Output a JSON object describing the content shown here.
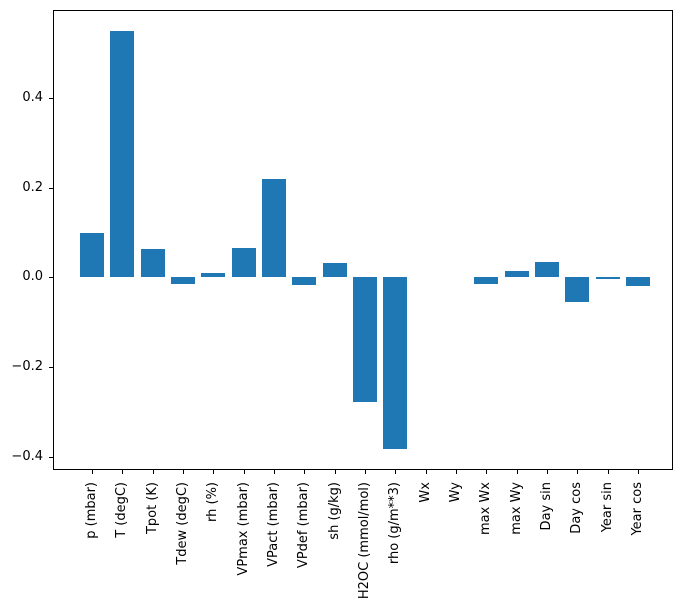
{
  "chart_data": {
    "type": "bar",
    "title": "",
    "xlabel": "",
    "ylabel": "",
    "categories": [
      "p (mbar)",
      "T (degC)",
      "Tpot (K)",
      "Tdew (degC)",
      "rh (%)",
      "VPmax (mbar)",
      "VPact (mbar)",
      "VPdef (mbar)",
      "sh (g/kg)",
      "H2OC (mmol/mol)",
      "rho (g/m**3)",
      "Wx",
      "Wy",
      "max Wx",
      "max Wy",
      "Day sin",
      "Day cos",
      "Year sin",
      "Year cos"
    ],
    "values": [
      0.1,
      0.55,
      0.064,
      -0.015,
      0.011,
      0.065,
      0.219,
      -0.016,
      0.033,
      -0.277,
      -0.382,
      0.0,
      0.0,
      -0.015,
      0.014,
      0.035,
      -0.055,
      -0.004,
      -0.02
    ],
    "bar_color": "#1f77b4",
    "axis_color": "#000000",
    "background_color": "#ffffff",
    "ylim": [
      -0.429,
      0.596
    ],
    "yticks": [
      {
        "value": 0.4,
        "label": "0.4"
      },
      {
        "value": 0.2,
        "label": "0.2"
      },
      {
        "value": 0.0,
        "label": "0.0"
      },
      {
        "value": -0.2,
        "label": "−0.2"
      },
      {
        "value": -0.4,
        "label": "−0.4"
      }
    ],
    "grid": false,
    "legend": null,
    "x_tick_label_rotation_deg": 90
  }
}
